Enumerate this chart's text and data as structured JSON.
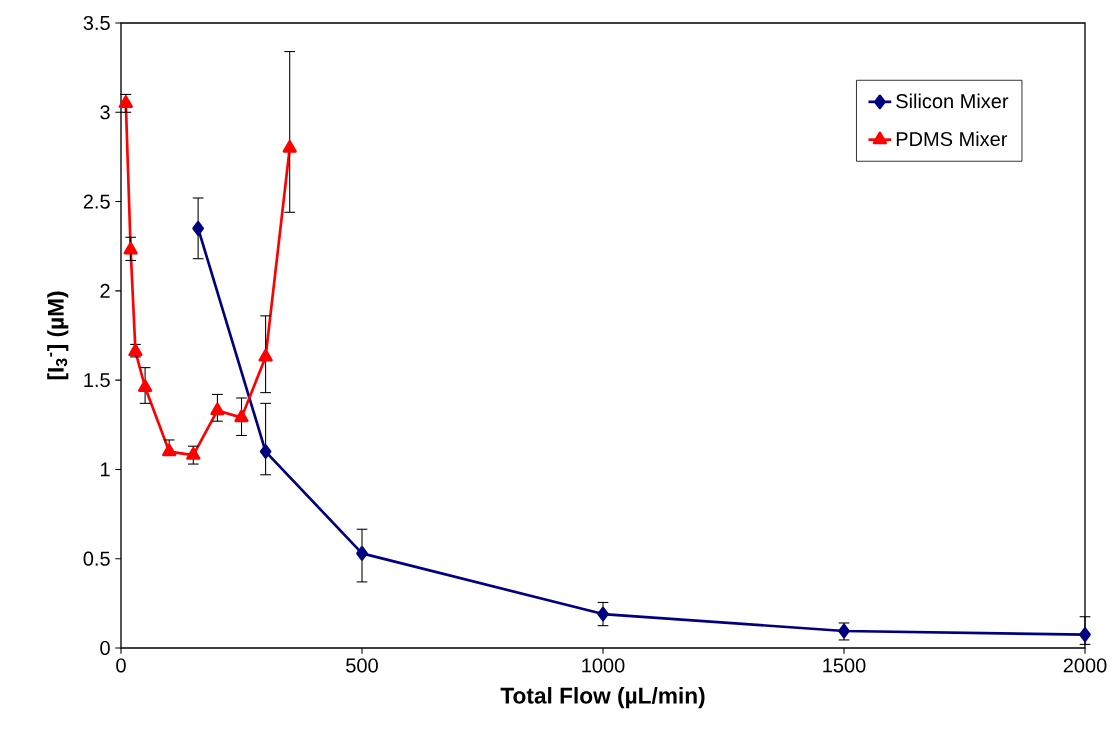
{
  "chart_data": {
    "type": "line",
    "xlabel": "Total Flow (µL/min)",
    "ylabel": "[I$_{3}$$^{-}$] (µM)",
    "xlim": [
      0,
      2000
    ],
    "xticks": [
      0,
      500,
      1000,
      1500,
      2000
    ],
    "ylim": [
      0,
      3.5
    ],
    "yticks": [
      0,
      0.5,
      1,
      1.5,
      2,
      2.5,
      3,
      3.5
    ],
    "grid": false,
    "legend": "top right",
    "line_style": "solid",
    "series": [
      {
        "name": "Silicon Mixer",
        "color": "#000080",
        "marker": "diamond",
        "x": [
          160,
          300,
          500,
          1000,
          1500,
          2000
        ],
        "values": [
          2.35,
          1.1,
          0.53,
          0.19,
          0.095,
          0.075
        ],
        "errors": [
          [
            2.18,
            2.52
          ],
          [
            0.97,
            1.37
          ],
          [
            0.37,
            0.665
          ],
          [
            0.125,
            0.255
          ],
          [
            0.045,
            0.14
          ],
          [
            0.02,
            0.175
          ]
        ]
      },
      {
        "name": "PDMS Mixer",
        "color": "#ff0000",
        "marker": "triangle",
        "x": [
          10,
          20,
          30,
          50,
          100,
          150,
          200,
          250,
          300,
          350
        ],
        "values": [
          3.05,
          2.23,
          1.66,
          1.46,
          1.1,
          1.08,
          1.33,
          1.29,
          1.63,
          2.8
        ],
        "errors": [
          [
            3.0,
            3.1
          ],
          [
            2.17,
            2.3
          ],
          [
            1.63,
            1.7
          ],
          [
            1.37,
            1.57
          ],
          [
            1.09,
            1.165
          ],
          [
            1.03,
            1.13
          ],
          [
            1.27,
            1.42
          ],
          [
            1.19,
            1.4
          ],
          [
            1.43,
            1.86
          ],
          [
            2.44,
            3.34
          ]
        ]
      }
    ]
  }
}
